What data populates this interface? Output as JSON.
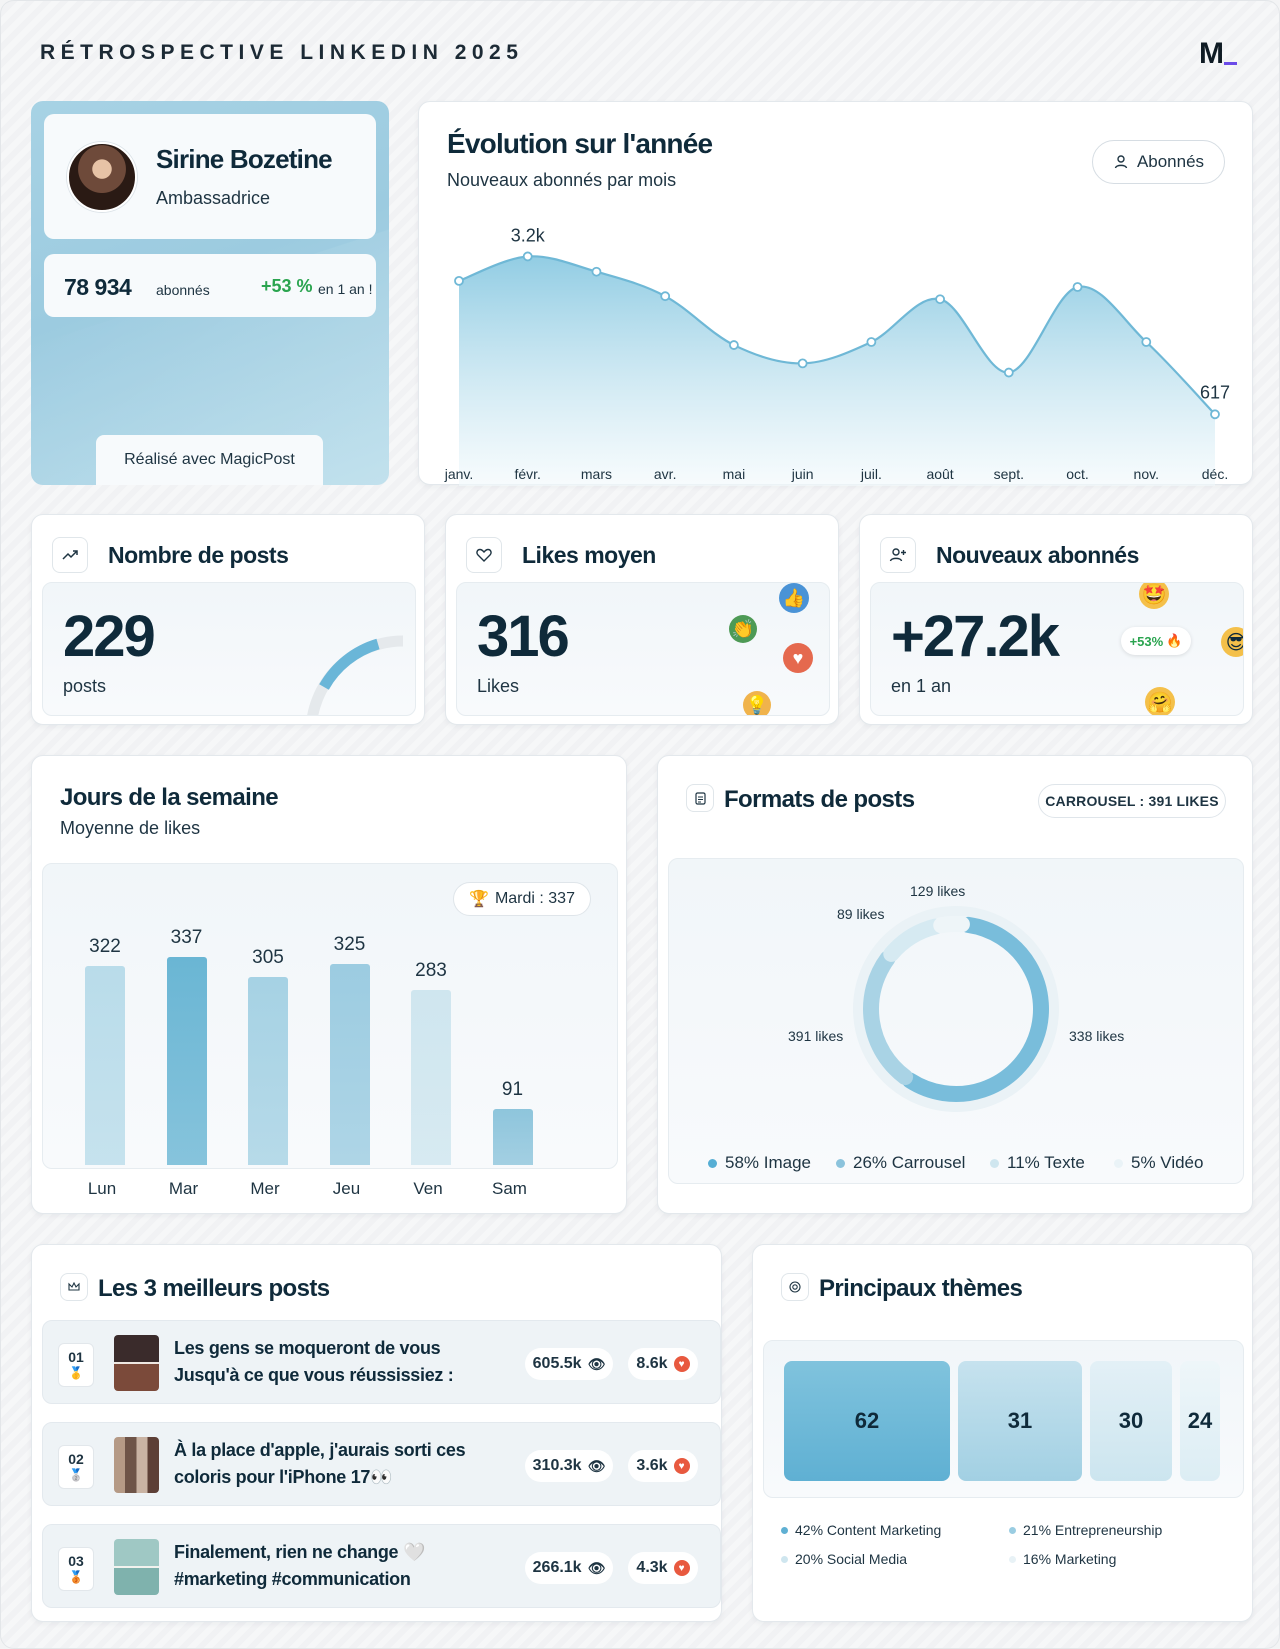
{
  "header": {
    "title": "RÉTROSPECTIVE LINKEDIN 2025",
    "logo": "M"
  },
  "profile": {
    "name": "Sirine Bozetine",
    "role": "Ambassadrice",
    "followers": "78 934",
    "followers_unit": "abonnés",
    "growth": "+53 %",
    "growth_note": "en 1 an !",
    "made_with": "Réalisé avec MagicPost"
  },
  "evolution": {
    "title": "Évolution sur l'année",
    "subtitle": "Nouveaux abonnés par mois",
    "filter_label": "Abonnés",
    "chart_data": {
      "type": "area",
      "categories": [
        "janv.",
        "févr.",
        "mars",
        "avr.",
        "mai",
        "juin",
        "juil.",
        "août",
        "sept.",
        "oct.",
        "nov.",
        "déc."
      ],
      "values": [
        2800,
        3200,
        2950,
        2550,
        1750,
        1450,
        1800,
        2500,
        1300,
        2700,
        1800,
        617
      ],
      "data_labels": [
        {
          "index": 1,
          "text": "3.2k"
        },
        {
          "index": 11,
          "text": "617"
        }
      ],
      "ylim": [
        0,
        3600
      ],
      "grid": false,
      "color": "#6fb8d6"
    }
  },
  "stats": {
    "posts": {
      "title": "Nombre de posts",
      "value": "229",
      "unit": "posts",
      "icon": "trending-up-icon"
    },
    "likes": {
      "title": "Likes moyen",
      "value": "316",
      "unit": "Likes",
      "icon": "heart-icon"
    },
    "followers": {
      "title": "Nouveaux abonnés",
      "value": "+27.2k",
      "unit": "en 1 an",
      "badge": "+53%",
      "icon": "user-plus-icon"
    }
  },
  "weekdays": {
    "title": "Jours de la semaine",
    "subtitle": "Moyenne de likes",
    "best_badge": "Mardi : 337",
    "chart_data": {
      "type": "bar",
      "categories": [
        "Lun",
        "Mar",
        "Mer",
        "Jeu",
        "Ven",
        "Sam"
      ],
      "values": [
        322,
        337,
        305,
        325,
        283,
        91
      ],
      "ylim": [
        0,
        337
      ],
      "highlight_index": 1,
      "colors": [
        "#b9dcea",
        "#6ab6d4",
        "#a6d2e4",
        "#9ccce1",
        "#cfe6ef",
        "#8ec5dc"
      ]
    }
  },
  "formats": {
    "title": "Formats de posts",
    "badge": "CARROUSEL : 391 LIKES",
    "chart_data": {
      "type": "pie",
      "variant": "donut",
      "categories": [
        "Image",
        "Carrousel",
        "Texte",
        "Vidéo"
      ],
      "values": [
        58,
        26,
        11,
        5
      ],
      "likes": [
        "338 likes",
        "391 likes",
        "89 likes",
        "129 likes"
      ],
      "colors": [
        "#79bddb",
        "#a9d3e5",
        "#d6eaf2",
        "#eef5f8"
      ]
    },
    "legend": [
      "58% Image",
      "26% Carrousel",
      "11% Texte",
      "5% Vidéo"
    ]
  },
  "top_posts": {
    "title": "Les 3 meilleurs posts",
    "items": [
      {
        "rank": "01",
        "text": "Les gens se moqueront de vous Jusqu'à ce que vous réussissiez :",
        "views": "605.5k",
        "likes": "8.6k",
        "medal": "🥇"
      },
      {
        "rank": "02",
        "text": "À la place d'apple, j'aurais sorti ces coloris pour l'iPhone 17👀",
        "views": "310.3k",
        "likes": "3.6k",
        "medal": "🥈"
      },
      {
        "rank": "03",
        "text": "Finalement, rien ne change 🤍 #marketing #communication",
        "views": "266.1k",
        "likes": "4.3k",
        "medal": "🥉"
      }
    ]
  },
  "themes": {
    "title": "Principaux thèmes",
    "boxes": [
      "62",
      "31",
      "30",
      "24"
    ],
    "legend": [
      "42% Content Marketing",
      "21% Entrepreneurship",
      "20% Social Media",
      "16% Marketing"
    ],
    "colors": [
      "#6ab6d4",
      "#a9d3e5",
      "#cfe6ef",
      "#e4f0f5"
    ]
  }
}
